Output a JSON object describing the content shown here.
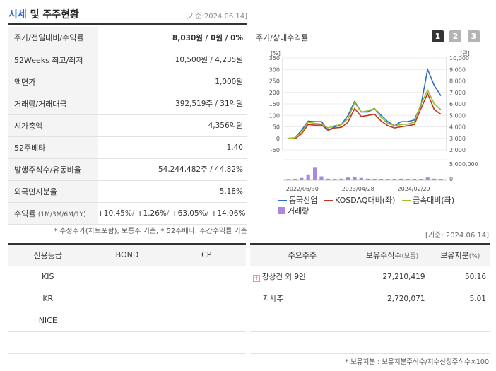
{
  "header": {
    "title_accent": "시세",
    "title_rest": " 및 주주현황",
    "date": "[기준:2024.06.14]"
  },
  "info": {
    "rows": [
      {
        "label": "주가/전일대비/수익률",
        "value": "8,030원 / 0원 / 0%"
      },
      {
        "label": "52Weeks 최고/최저",
        "value": "10,500원 / 4,235원"
      },
      {
        "label": "액면가",
        "value": "1,000원"
      },
      {
        "label": "거래량/거래대금",
        "value": "392,519주 / 31억원"
      },
      {
        "label": "시가총액",
        "value": "4,356억원"
      },
      {
        "label": "52주베타",
        "value": "1.40"
      },
      {
        "label": "발행주식수/유동비율",
        "value": "54,244,482주 / 44.82%"
      },
      {
        "label": "외국인지분율",
        "value": "5.18%"
      }
    ],
    "returns": {
      "label": "수익률",
      "label_sub": "(1M/3M/6M/1Y)",
      "values": [
        "+10.45%",
        "+1.26%",
        "+63.05%",
        "+14.06%"
      ]
    },
    "note": "* 수정주가(차트포함), 보통주 기준, * 52주베타: 주간수익률 기준"
  },
  "chart_panel": {
    "title": "주가/상대수익률",
    "pages": [
      "1",
      "2",
      "3"
    ],
    "legend": {
      "s1": "동국산업",
      "s2": "KOSDAQ대비(좌)",
      "s3": "금속대비(좌)",
      "vol": "거래량"
    }
  },
  "chart_data": {
    "type": "line",
    "left_axis_label": "[%]",
    "right_axis_label": "[원]",
    "left_ticks": [
      "350",
      "300",
      "250",
      "200",
      "150",
      "100",
      "50",
      "0",
      "-50"
    ],
    "right_ticks": [
      "10,000",
      "9,000",
      "8,000",
      "7,000",
      "6,000",
      "5,000",
      "4,000",
      "3,000",
      "2,000"
    ],
    "volume_ticks": [
      "5,000,000",
      "0"
    ],
    "x_ticks": [
      "2022/06/30",
      "2023/04/28",
      "2024/02/29"
    ],
    "ylim_left": [
      -50,
      350
    ],
    "ylim_right": [
      2000,
      10000
    ],
    "series": [
      {
        "name": "동국산업",
        "color": "#2c6cc8",
        "axis": "right",
        "values": [
          3000,
          3050,
          3700,
          4500,
          4450,
          4450,
          3700,
          4000,
          4200,
          5000,
          6200,
          5300,
          5300,
          5600,
          5000,
          4450,
          4100,
          4450,
          4450,
          4600,
          5900,
          9000,
          7600,
          6700
        ]
      },
      {
        "name": "KOSDAQ대비(좌)",
        "color": "#c8321e",
        "axis": "left",
        "values": [
          0,
          -2,
          20,
          60,
          57,
          58,
          35,
          45,
          48,
          70,
          130,
          95,
          100,
          105,
          75,
          55,
          45,
          50,
          55,
          60,
          130,
          195,
          125,
          105
        ]
      },
      {
        "name": "금속대비(좌)",
        "color": "#9abf2a",
        "axis": "left",
        "values": [
          0,
          3,
          25,
          70,
          65,
          62,
          45,
          55,
          60,
          85,
          155,
          115,
          120,
          130,
          90,
          65,
          55,
          60,
          62,
          70,
          150,
          210,
          150,
          125
        ]
      }
    ],
    "volume": {
      "name": "거래량",
      "color": "#a88ad6",
      "values": [
        0.15,
        0.3,
        0.6,
        1.5,
        3.2,
        1.0,
        0.4,
        0.2,
        0.4,
        0.7,
        0.9,
        0.6,
        0.4,
        0.3,
        0.3,
        0.2,
        0.2,
        0.4,
        0.3,
        0.25,
        0.3,
        0.7,
        0.4,
        0.2
      ]
    }
  },
  "updated": "[기준: 2024.06.14]",
  "credit": {
    "headers": [
      "신용등급",
      "BOND",
      "CP"
    ],
    "rows": [
      [
        "KIS",
        "",
        ""
      ],
      [
        "KR",
        "",
        ""
      ],
      [
        "NICE",
        "",
        ""
      ],
      [
        "",
        "",
        ""
      ]
    ]
  },
  "holders": {
    "headers": [
      "주요주주",
      "보유주식수",
      "(보통)",
      "보유지분",
      "(%)"
    ],
    "rows": [
      {
        "name": "장상건 외 9인",
        "shares": "27,210,419",
        "pct": "50.16",
        "expand": "+"
      },
      {
        "name": "자사주",
        "shares": "2,720,071",
        "pct": "5.01",
        "expand": ""
      },
      {
        "name": "",
        "shares": "",
        "pct": "",
        "expand": ""
      },
      {
        "name": "",
        "shares": "",
        "pct": "",
        "expand": ""
      }
    ],
    "note": "* 보유지분 : 보유지분주식수/지수산정주식수×100"
  }
}
